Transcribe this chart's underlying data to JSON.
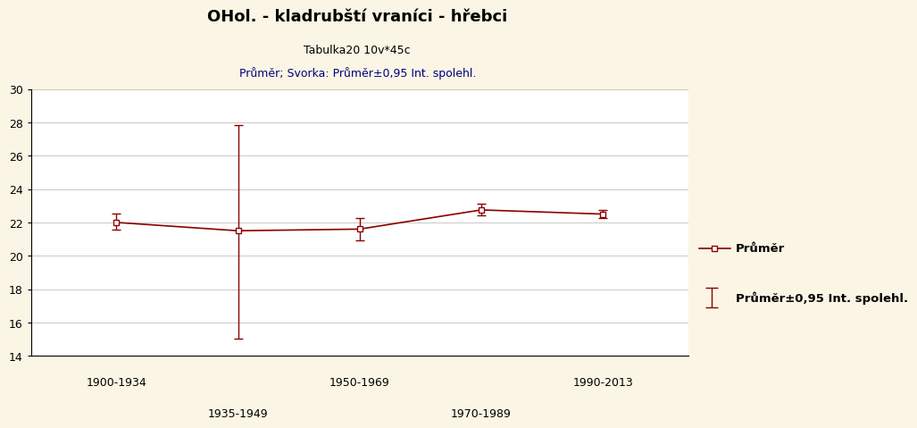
{
  "title": "OHol. - kladrubští vraníci - hřebci",
  "subtitle1": "Tabulka20 10v*45c",
  "subtitle2": "Průměr; Svorka: Průměr±0,95 Int. spolehl.",
  "categories": [
    "1900-1934",
    "1935-1949",
    "1950-1969",
    "1970-1989",
    "1990-2013"
  ],
  "x_positions": [
    1,
    2,
    3,
    4,
    5
  ],
  "means": [
    22.0,
    21.5,
    21.6,
    22.75,
    22.5
  ],
  "ci_upper": [
    22.55,
    27.85,
    22.25,
    23.1,
    22.75
  ],
  "ci_lower": [
    21.55,
    15.05,
    20.95,
    22.45,
    22.25
  ],
  "line_color": "#8B0000",
  "subtitle2_color": "#000080",
  "background_color": "#FAF5E4",
  "plot_background": "#FFFFFF",
  "ylim": [
    14,
    30
  ],
  "yticks": [
    14,
    16,
    18,
    20,
    22,
    24,
    26,
    28,
    30
  ],
  "legend_mean": "Průměr",
  "legend_ci": "Průměr±0,95 Int. spolehl."
}
